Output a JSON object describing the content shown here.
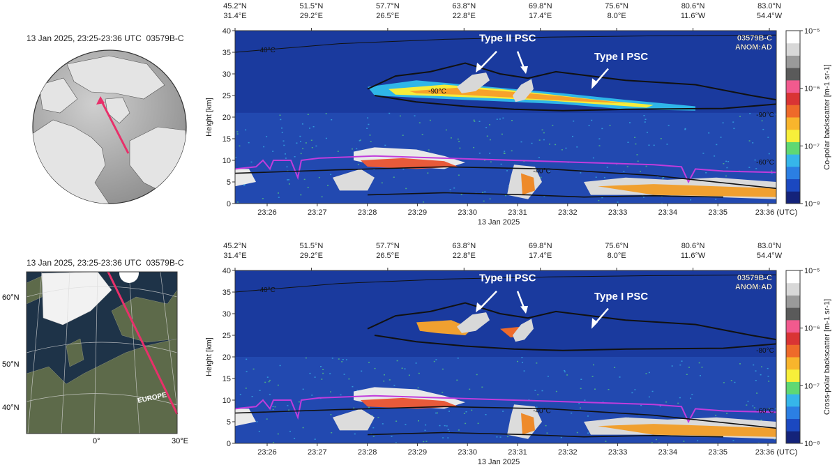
{
  "chart_data": [
    {
      "type": "heatmap",
      "panel": "co-polar",
      "map_caption": "13 Jan 2025, 23:25-23:36 UTC",
      "orbit_id": "03579B-C",
      "product_label": [
        "03579B-C",
        "ANOM:AD"
      ],
      "ylabel": "Height [km]",
      "ylim": [
        0,
        40
      ],
      "y_ticks": [
        0,
        5,
        10,
        15,
        20,
        25,
        30,
        35,
        40
      ],
      "x_ticks": [
        "23:26",
        "23:27",
        "23:28",
        "23:29",
        "23:30",
        "23:31",
        "23:32",
        "23:33",
        "23:34",
        "23:35",
        "23:36 (UTC)"
      ],
      "xlabel": "13 Jan 2025",
      "top_axis": [
        {
          "lat": "45.2°N",
          "lon": "31.4°E"
        },
        {
          "lat": "51.5°N",
          "lon": "29.2°E"
        },
        {
          "lat": "57.7°N",
          "lon": "26.5°E"
        },
        {
          "lat": "63.8°N",
          "lon": "22.8°E"
        },
        {
          "lat": "69.8°N",
          "lon": "17.4°E"
        },
        {
          "lat": "75.6°N",
          "lon": "8.0°E"
        },
        {
          "lat": "80.6°N",
          "lon": "11.6°W"
        },
        {
          "lat": "83.0°N",
          "lon": "54.4°W"
        }
      ],
      "colorbar_label": "Co-polar backscatter [m-1 sr-1]",
      "colorbar_ticks": [
        "10⁻⁵",
        "10⁻⁶",
        "10⁻⁷",
        "10⁻⁸"
      ],
      "annotations": [
        "Type II PSC",
        "Type I PSC"
      ],
      "contour_labels": [
        "-40°C",
        "-90°C",
        "-90°C",
        "-60°C",
        "-40°C"
      ],
      "grid": false
    },
    {
      "type": "heatmap",
      "panel": "cross-polar",
      "map_caption": "13 Jan 2025, 23:25-23:36 UTC",
      "orbit_id": "03579B-C",
      "product_label": [
        "03579B-C",
        "ANOM:AD"
      ],
      "ylabel": "Height [km]",
      "ylim": [
        0,
        40
      ],
      "y_ticks": [
        0,
        5,
        10,
        15,
        20,
        25,
        30,
        35,
        40
      ],
      "x_ticks": [
        "23:26",
        "23:27",
        "23:28",
        "23:29",
        "23:30",
        "23:31",
        "23:32",
        "23:33",
        "23:34",
        "23:35",
        "23:36 (UTC)"
      ],
      "xlabel": "13 Jan 2025",
      "top_axis": [
        {
          "lat": "45.2°N",
          "lon": "31.4°E"
        },
        {
          "lat": "51.5°N",
          "lon": "29.2°E"
        },
        {
          "lat": "57.7°N",
          "lon": "26.5°E"
        },
        {
          "lat": "63.8°N",
          "lon": "22.8°E"
        },
        {
          "lat": "69.8°N",
          "lon": "17.4°E"
        },
        {
          "lat": "75.6°N",
          "lon": "8.0°E"
        },
        {
          "lat": "80.6°N",
          "lon": "11.6°W"
        },
        {
          "lat": "83.0°N",
          "lon": "54.4°W"
        }
      ],
      "colorbar_label": "Cross-polar backscatter [m-1 sr-1]",
      "colorbar_ticks": [
        "10⁻⁵",
        "10⁻⁶",
        "10⁻⁷",
        "10⁻⁸"
      ],
      "annotations": [
        "Type II PSC",
        "Type I PSC"
      ],
      "contour_labels": [
        "-40°C",
        "-80°C",
        "-60°C",
        "-40°C"
      ],
      "grid": false
    }
  ],
  "map2": {
    "lat_labels": [
      "60°N",
      "50°N",
      "40°N"
    ],
    "lon_labels": [
      "0°",
      "30°E"
    ],
    "region_label": "EUROPE"
  },
  "colors": {
    "background_blue": "#1a3a9e",
    "track": "#e8306a",
    "contour": "#111111",
    "tropopause": "#c13cdc",
    "colorbar": [
      "#14237a",
      "#1b48c0",
      "#2b7fe3",
      "#36b6ea",
      "#5fd873",
      "#f7ef3a",
      "#f8b52c",
      "#ee6a2a",
      "#d93434",
      "#f25a8e",
      "#5a5a5a",
      "#9a9a9a",
      "#d8d8d8",
      "#ffffff"
    ]
  }
}
